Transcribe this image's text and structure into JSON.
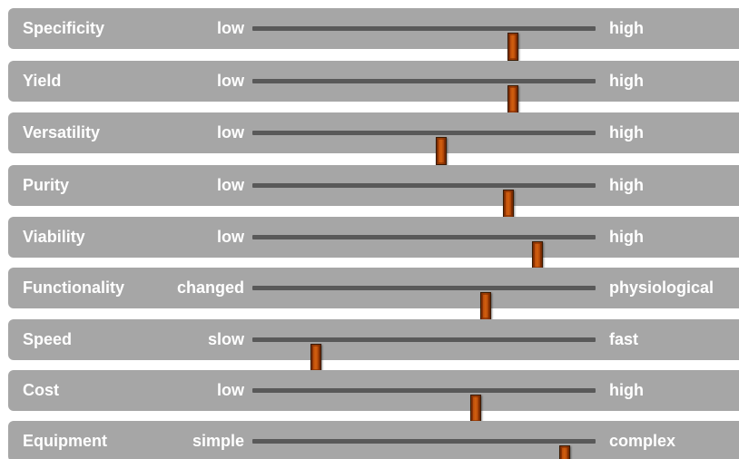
{
  "sliders": [
    {
      "label": "Specificity",
      "min_label": "low",
      "max_label": "high",
      "value": 0.76
    },
    {
      "label": "Yield",
      "min_label": "low",
      "max_label": "high",
      "value": 0.76
    },
    {
      "label": "Versatility",
      "min_label": "low",
      "max_label": "high",
      "value": 0.55
    },
    {
      "label": "Purity",
      "min_label": "low",
      "max_label": "high",
      "value": 0.745
    },
    {
      "label": "Viability",
      "min_label": "low",
      "max_label": "high",
      "value": 0.83
    },
    {
      "label": "Functionality",
      "min_label": "changed",
      "max_label": "physiological",
      "value": 0.68
    },
    {
      "label": "Speed",
      "min_label": "slow",
      "max_label": "fast",
      "value": 0.185
    },
    {
      "label": "Cost",
      "min_label": "low",
      "max_label": "high",
      "value": 0.65
    },
    {
      "label": "Equipment",
      "min_label": "simple",
      "max_label": "complex",
      "value": 0.91
    }
  ],
  "colors": {
    "row_background": "#a6a6a6",
    "label_text": "#ffffff",
    "track": "#595959",
    "thumb": "#c0500c"
  }
}
